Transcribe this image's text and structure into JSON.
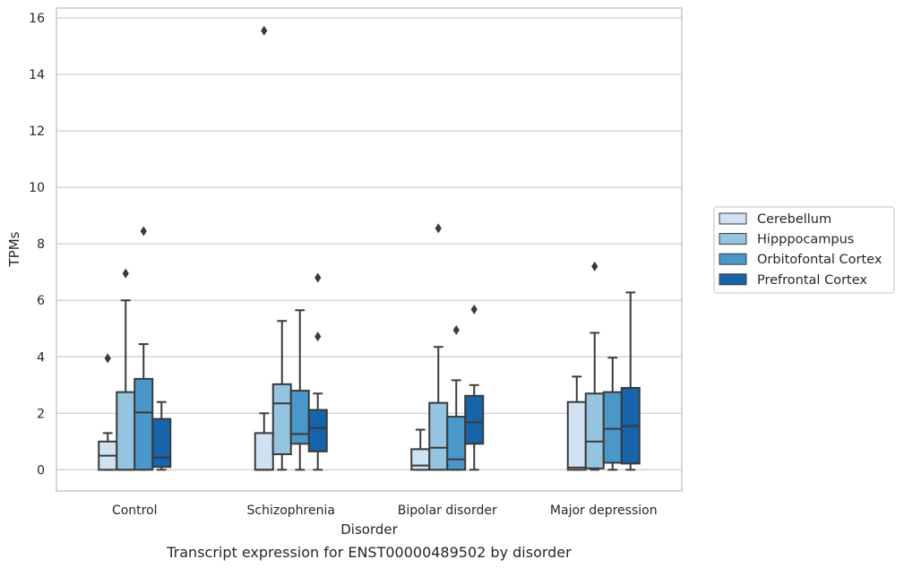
{
  "chart_data": {
    "type": "boxplot",
    "title": "",
    "caption": "Transcript expression for ENST00000489502 by disorder",
    "xlabel": "Disorder",
    "ylabel": "TPMs",
    "ylim": [
      -0.75,
      16.35
    ],
    "yticks": [
      0,
      2,
      4,
      6,
      8,
      10,
      12,
      14,
      16
    ],
    "categories": [
      "Control",
      "Schizophrenia",
      "Bipolar disorder",
      "Major depression"
    ],
    "legend_position": "right",
    "grid": "horizontal",
    "series": [
      {
        "name": "Cerebellum",
        "color": "#d0e1f2",
        "boxes": [
          {
            "whisker_low": 0,
            "q1": 0,
            "median": 0.5,
            "q3": 1.0,
            "whisker_high": 1.3,
            "outliers": [
              3.95
            ]
          },
          {
            "whisker_low": 0,
            "q1": 0,
            "median": 0,
            "q3": 1.3,
            "whisker_high": 2.0,
            "outliers": [
              15.55
            ]
          },
          {
            "whisker_low": 0,
            "q1": 0,
            "median": 0.15,
            "q3": 0.73,
            "whisker_high": 1.42,
            "outliers": []
          },
          {
            "whisker_low": 0,
            "q1": 0,
            "median": 0.08,
            "q3": 2.4,
            "whisker_high": 3.3,
            "outliers": []
          }
        ]
      },
      {
        "name": "Hipppocampus",
        "color": "#94c4df",
        "boxes": [
          {
            "whisker_low": 0,
            "q1": 0,
            "median": 0,
            "q3": 2.75,
            "whisker_high": 6.0,
            "outliers": [
              6.95
            ]
          },
          {
            "whisker_low": 0,
            "q1": 0.55,
            "median": 2.35,
            "q3": 3.03,
            "whisker_high": 5.27,
            "outliers": []
          },
          {
            "whisker_low": 0,
            "q1": 0,
            "median": 0.78,
            "q3": 2.37,
            "whisker_high": 4.35,
            "outliers": [
              8.55
            ]
          },
          {
            "whisker_low": 0,
            "q1": 0.05,
            "median": 1.0,
            "q3": 2.7,
            "whisker_high": 4.85,
            "outliers": [
              7.2
            ]
          }
        ]
      },
      {
        "name": "Orbitofontal Cortex",
        "color": "#4a98c9",
        "boxes": [
          {
            "whisker_low": 0,
            "q1": 0,
            "median": 2.03,
            "q3": 3.22,
            "whisker_high": 4.45,
            "outliers": [
              8.45
            ]
          },
          {
            "whisker_low": 0,
            "q1": 0.92,
            "median": 1.27,
            "q3": 2.8,
            "whisker_high": 5.65,
            "outliers": []
          },
          {
            "whisker_low": 0,
            "q1": 0,
            "median": 0.37,
            "q3": 1.88,
            "whisker_high": 3.17,
            "outliers": [
              4.95
            ]
          },
          {
            "whisker_low": 0,
            "q1": 0.25,
            "median": 1.45,
            "q3": 2.75,
            "whisker_high": 3.97,
            "outliers": []
          }
        ]
      },
      {
        "name": "Prefrontal Cortex",
        "color": "#1764ab",
        "boxes": [
          {
            "whisker_low": 0,
            "q1": 0.1,
            "median": 0.43,
            "q3": 1.8,
            "whisker_high": 2.4,
            "outliers": []
          },
          {
            "whisker_low": 0,
            "q1": 0.65,
            "median": 1.48,
            "q3": 2.12,
            "whisker_high": 2.7,
            "outliers": [
              4.72,
              6.8
            ]
          },
          {
            "whisker_low": 0,
            "q1": 0.92,
            "median": 1.68,
            "q3": 2.62,
            "whisker_high": 3.0,
            "outliers": [
              5.68
            ]
          },
          {
            "whisker_low": 0,
            "q1": 0.22,
            "median": 1.55,
            "q3": 2.9,
            "whisker_high": 6.28,
            "outliers": []
          }
        ]
      }
    ]
  }
}
